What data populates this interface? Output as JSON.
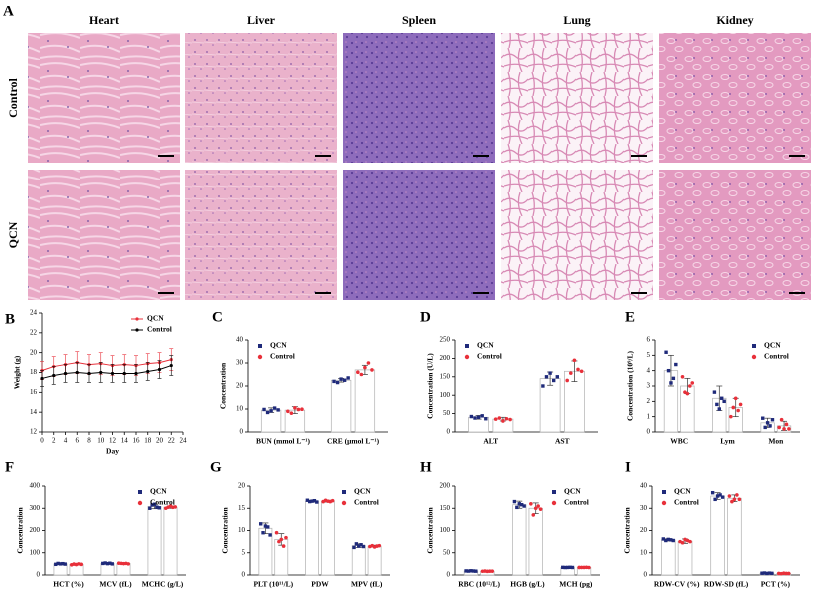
{
  "histology": {
    "panel": "A",
    "columns": [
      "Heart",
      "Liver",
      "Spleen",
      "Lung",
      "Kidney"
    ],
    "rows": [
      "Control",
      "QCN"
    ]
  },
  "chart_data": [
    {
      "panel": "B",
      "type": "line",
      "y_label": "Weight (g)",
      "x_label": "Day",
      "legend": "upper right",
      "x": [
        0,
        2,
        4,
        6,
        8,
        10,
        12,
        14,
        16,
        18,
        20,
        22
      ],
      "xlim": [
        0,
        24
      ],
      "xticks": [
        0,
        2,
        4,
        6,
        8,
        10,
        12,
        14,
        16,
        18,
        20,
        22,
        24
      ],
      "ylim": [
        12,
        24
      ],
      "yticks": [
        12,
        14,
        16,
        18,
        20,
        22,
        24
      ],
      "series": [
        {
          "name": "QCN",
          "color": "#e8303a",
          "values": [
            18.2,
            18.6,
            18.8,
            19.0,
            18.8,
            18.9,
            18.7,
            18.8,
            18.7,
            18.9,
            19.0,
            19.3
          ],
          "errors": [
            0.9,
            1.0,
            1.0,
            1.1,
            1.0,
            1.1,
            1.0,
            1.0,
            1.0,
            1.0,
            1.0,
            1.1
          ]
        },
        {
          "name": "Control",
          "color": "#000000",
          "values": [
            17.4,
            17.7,
            17.9,
            18.0,
            17.9,
            18.0,
            17.9,
            17.9,
            17.9,
            18.1,
            18.3,
            18.7
          ],
          "errors": [
            0.8,
            0.9,
            0.9,
            1.0,
            0.9,
            1.0,
            0.9,
            0.9,
            0.9,
            0.9,
            0.9,
            1.0
          ]
        }
      ]
    },
    {
      "panel": "C",
      "type": "bar",
      "y_label": "Concentration",
      "legend": "upper left",
      "categories": [
        "BUN (mmol L⁻¹)",
        "CRE (μmol L⁻¹)"
      ],
      "ylim": [
        0,
        40
      ],
      "yticks": [
        0,
        10,
        20,
        30,
        40
      ],
      "series": [
        {
          "name": "QCN",
          "color": "#1f2a7a",
          "values": [
            9.5,
            22.5
          ],
          "errors": [
            1.0,
            0.8
          ],
          "points": [
            [
              9.8,
              8.5,
              9.2,
              10.4,
              9.6
            ],
            [
              22,
              21.5,
              23,
              22.5,
              23.5
            ]
          ]
        },
        {
          "name": "Control",
          "color": "#e8303a",
          "values": [
            9.5,
            27
          ],
          "errors": [
            1.5,
            2.0
          ],
          "points": [
            [
              9,
              8.2,
              10.5,
              9.8,
              9.9
            ],
            [
              26,
              25,
              28,
              30,
              27
            ]
          ]
        }
      ]
    },
    {
      "panel": "D",
      "type": "bar",
      "y_label": "Concentration (U/L)",
      "legend": "upper left",
      "categories": [
        "ALT",
        "AST"
      ],
      "ylim": [
        0,
        250
      ],
      "yticks": [
        0,
        50,
        100,
        150,
        200,
        250
      ],
      "series": [
        {
          "name": "QCN",
          "color": "#1f2a7a",
          "values": [
            40,
            145
          ],
          "errors": [
            5,
            18
          ],
          "points": [
            [
              42,
              38,
              40,
              44,
              36
            ],
            [
              125,
              150,
              160,
              140,
              150
            ]
          ]
        },
        {
          "name": "Control",
          "color": "#e8303a",
          "values": [
            35,
            165
          ],
          "errors": [
            5,
            28
          ],
          "points": [
            [
              35,
              38,
              30,
              36,
              34
            ],
            [
              140,
              160,
              195,
              170,
              165
            ]
          ]
        }
      ]
    },
    {
      "panel": "E",
      "type": "bar",
      "y_label": "Concentration (10⁹/L)",
      "legend": "upper right",
      "categories": [
        "WBC",
        "Lym",
        "Mon"
      ],
      "ylim": [
        0,
        6
      ],
      "yticks": [
        0,
        1,
        2,
        3,
        4,
        5,
        6
      ],
      "series": [
        {
          "name": "QCN",
          "color": "#1f2a7a",
          "values": [
            4.0,
            2.2,
            0.6
          ],
          "errors": [
            1.0,
            0.8,
            0.3
          ],
          "points": [
            [
              5.2,
              4.0,
              3.2,
              3.5,
              4.4
            ],
            [
              2.6,
              1.8,
              1.5,
              2.2,
              2.0
            ],
            [
              0.9,
              0.3,
              0.6,
              0.4,
              0.8
            ]
          ]
        },
        {
          "name": "Control",
          "color": "#e8303a",
          "values": [
            3.0,
            1.6,
            0.4
          ],
          "errors": [
            0.5,
            0.6,
            0.3
          ],
          "points": [
            [
              3.6,
              2.6,
              2.5,
              3.0,
              3.2
            ],
            [
              1.0,
              1.6,
              2.2,
              1.4,
              1.8
            ],
            [
              0.3,
              0.8,
              0.2,
              0.5,
              0.2
            ]
          ]
        }
      ]
    },
    {
      "panel": "F",
      "type": "bar",
      "y_label": "Concentration",
      "legend": "upper right",
      "categories": [
        "HCT (%)",
        "MCV (fL)",
        "MCHC (g/L)"
      ],
      "ylim": [
        0,
        400
      ],
      "yticks": [
        0,
        100,
        200,
        300,
        400
      ],
      "series": [
        {
          "name": "QCN",
          "color": "#1f2a7a",
          "values": [
            50,
            52,
            308
          ],
          "errors": [
            3,
            2,
            10
          ],
          "points": [
            [
              48,
              52,
              50,
              51,
              49
            ],
            [
              52,
              54,
              51,
              53,
              50
            ],
            [
              300,
              315,
              318,
              305,
              302
            ]
          ]
        },
        {
          "name": "Control",
          "color": "#e8303a",
          "values": [
            48,
            52,
            305
          ],
          "errors": [
            3,
            2,
            5
          ],
          "points": [
            [
              46,
              49,
              47,
              50,
              48
            ],
            [
              53,
              52,
              51,
              52,
              50
            ],
            [
              300,
              305,
              310,
              304,
              306
            ]
          ]
        }
      ]
    },
    {
      "panel": "G",
      "type": "bar",
      "y_label": "Concentration",
      "legend": "upper right",
      "categories": [
        "PLT (10¹¹/L)",
        "PDW",
        "MPV (fL)"
      ],
      "ylim": [
        0,
        20
      ],
      "yticks": [
        0,
        5,
        10,
        15,
        20
      ],
      "series": [
        {
          "name": "QCN",
          "color": "#1f2a7a",
          "values": [
            10.5,
            16.6,
            6.6
          ],
          "errors": [
            1.2,
            0.2,
            0.4
          ],
          "points": [
            [
              11.5,
              9.5,
              11,
              10.8,
              9.0
            ],
            [
              16.8,
              16.5,
              16.6,
              16.7,
              16.4
            ],
            [
              6.2,
              7.0,
              6.5,
              6.8,
              6.4
            ]
          ]
        },
        {
          "name": "Control",
          "color": "#e8303a",
          "values": [
            8.0,
            16.6,
            6.5
          ],
          "errors": [
            1.3,
            0.2,
            0.2
          ],
          "points": [
            [
              9.5,
              7.5,
              8,
              6.5,
              8.4
            ],
            [
              16.5,
              16.8,
              16.6,
              16.5,
              16.7
            ],
            [
              6.4,
              6.6,
              6.3,
              6.5,
              6.6
            ]
          ]
        }
      ]
    },
    {
      "panel": "H",
      "type": "bar",
      "y_label": "Concentration",
      "legend": "upper right",
      "categories": [
        "RBC (10¹²/L)",
        "HGB (g/L)",
        "MCH (pg)"
      ],
      "ylim": [
        0,
        200
      ],
      "yticks": [
        0,
        50,
        100,
        150,
        200
      ],
      "series": [
        {
          "name": "QCN",
          "color": "#1f2a7a",
          "values": [
            9,
            158,
            17
          ],
          "errors": [
            0.5,
            8,
            0.5
          ],
          "points": [
            [
              9.2,
              8.8,
              9.5,
              9.0,
              8.6
            ],
            [
              165,
              152,
              160,
              158,
              155
            ],
            [
              17.2,
              16.8,
              17.0,
              17.3,
              16.9
            ]
          ]
        },
        {
          "name": "Control",
          "color": "#e8303a",
          "values": [
            8.5,
            150,
            17
          ],
          "errors": [
            0.5,
            12,
            0.5
          ],
          "points": [
            [
              8.4,
              8.8,
              8.2,
              8.6,
              8.6
            ],
            [
              160,
              135,
              150,
              155,
              148
            ],
            [
              16.9,
              17.1,
              17.0,
              17.2,
              16.8
            ]
          ]
        }
      ]
    },
    {
      "panel": "I",
      "type": "bar",
      "y_label": "Concentration",
      "legend": "upper left",
      "categories": [
        "RDW-CV (%)",
        "RDW-SD (fL)",
        "PCT (%)"
      ],
      "ylim": [
        0,
        40
      ],
      "yticks": [
        0,
        10,
        20,
        30,
        40
      ],
      "series": [
        {
          "name": "QCN",
          "color": "#1f2a7a",
          "values": [
            15.8,
            35.5,
            0.8
          ],
          "errors": [
            0.5,
            1.5,
            0.1
          ],
          "points": [
            [
              16.2,
              15.5,
              16.0,
              15.8,
              15.5
            ],
            [
              37,
              34,
              35.5,
              36,
              35
            ],
            [
              0.8,
              0.9,
              0.7,
              0.85,
              0.75
            ]
          ]
        },
        {
          "name": "Control",
          "color": "#e8303a",
          "values": [
            15.2,
            34.5,
            0.7
          ],
          "errors": [
            1.0,
            1.5,
            0.1
          ],
          "points": [
            [
              15,
              14.5,
              16,
              15.5,
              15
            ],
            [
              35.5,
              33,
              34,
              36,
              34
            ],
            [
              0.7,
              0.6,
              0.8,
              0.7,
              0.7
            ]
          ]
        }
      ]
    }
  ]
}
